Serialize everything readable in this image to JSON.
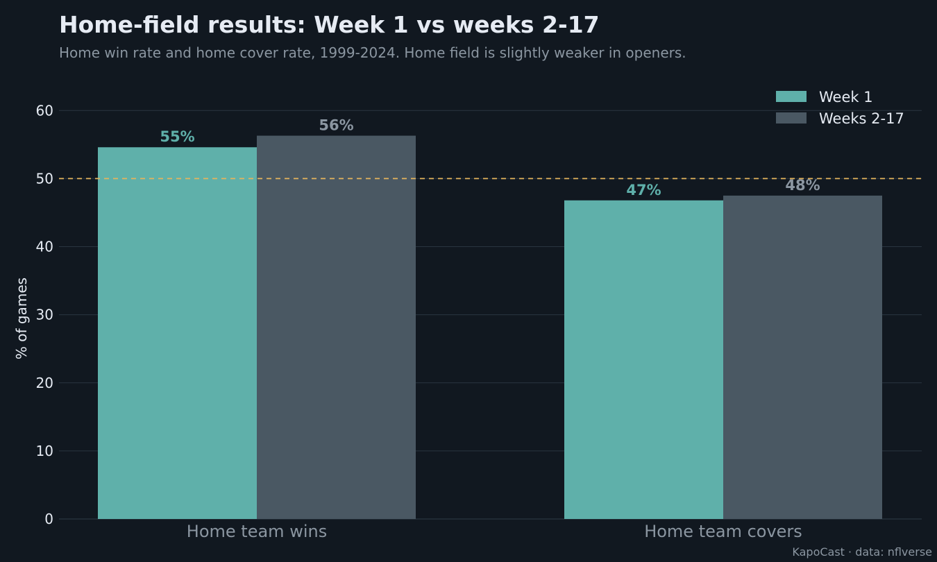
{
  "header": {
    "title": "Home-field results: Week 1 vs weeks 2-17",
    "subtitle": "Home win rate and home cover rate, 1999-2024. Home field is slightly weaker in openers."
  },
  "footer": {
    "credit": "KapoCast · data: nflverse"
  },
  "colors": {
    "background": "#111820",
    "week1": "#5fb0aa",
    "weeks2_17": "#4a5863",
    "reference_line": "#e5b45c",
    "grid": "#2a3540",
    "tick_text": "#e6ebf3",
    "category_text": "#8b96a1"
  },
  "chart_data": {
    "type": "bar",
    "title": "Home-field results: Week 1 vs weeks 2-17",
    "subtitle": "Home win rate and home cover rate, 1999-2024. Home field is slightly weaker in openers.",
    "categories": [
      "Home team wins",
      "Home team covers"
    ],
    "series": [
      {
        "name": "Week 1",
        "values": [
          54.6,
          46.8
        ],
        "labels": [
          "55%",
          "47%"
        ],
        "color": "#5fb0aa",
        "label_color": "#5fb0aa"
      },
      {
        "name": "Weeks 2-17",
        "values": [
          56.3,
          47.5
        ],
        "labels": [
          "56%",
          "48%"
        ],
        "color": "#4a5863",
        "label_color": "#8b96a1"
      }
    ],
    "xlabel": "",
    "ylabel": "% of games",
    "ylim": [
      0,
      64
    ],
    "yticks": [
      0,
      10,
      20,
      30,
      40,
      50,
      60
    ],
    "reference_line": {
      "y": 50,
      "style": "dashed",
      "color": "#e5b45c"
    },
    "grid": true,
    "legend_position": "top-right"
  }
}
